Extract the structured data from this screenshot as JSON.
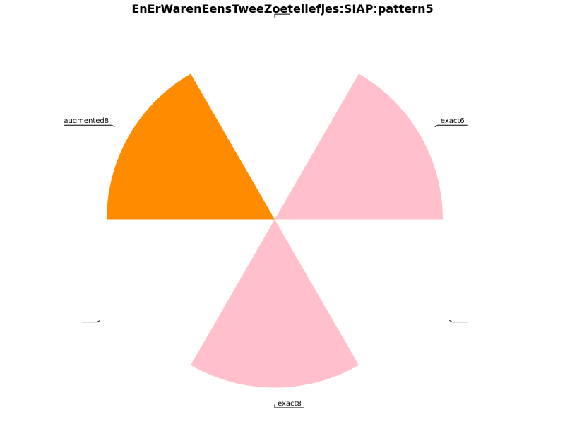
{
  "chart_data": {
    "type": "pie",
    "title": "EnErWarenEensTweeZoeteliefjes:SIAP:pattern5",
    "slices": [
      {
        "label": "exact6",
        "value": 1,
        "color": "#ffc0cb",
        "exploded": false
      },
      {
        "label": "",
        "value": 1,
        "color": "#ffffff",
        "exploded": true
      },
      {
        "label": "augmented8",
        "value": 1,
        "color": "#ff8c00",
        "exploded": false
      },
      {
        "label": "",
        "value": 1,
        "color": "#ffffff",
        "exploded": true
      },
      {
        "label": "exact8",
        "value": 1,
        "color": "#ffc0cb",
        "exploded": false
      },
      {
        "label": "",
        "value": 1,
        "color": "#ffffff",
        "exploded": true
      }
    ],
    "start_angle_deg": 0,
    "direction": "counterclockwise",
    "legend": "none"
  }
}
